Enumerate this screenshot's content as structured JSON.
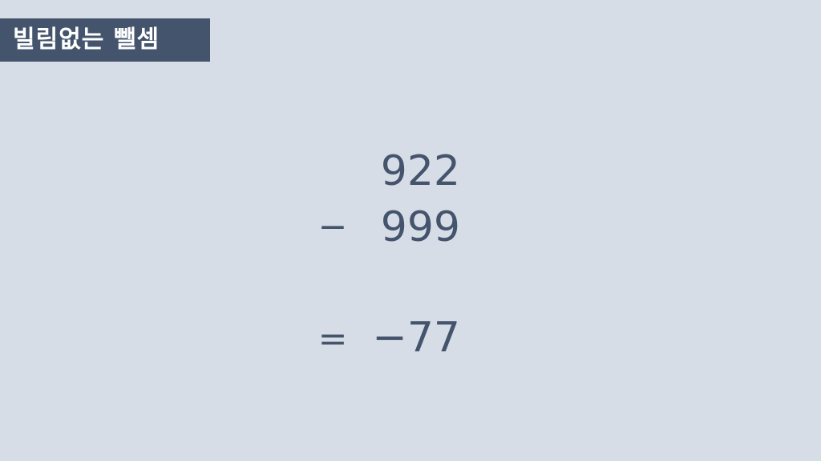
{
  "banner": {
    "title": "빌림없는 뺄셈"
  },
  "problem": {
    "minuend": "922",
    "operator": "−",
    "subtrahend": "999",
    "equals_sign": "=",
    "result": "−77"
  },
  "colors": {
    "background": "#d7dde6",
    "banner": "#44546c",
    "text": "#44546c",
    "banner_text": "#ffffff"
  }
}
